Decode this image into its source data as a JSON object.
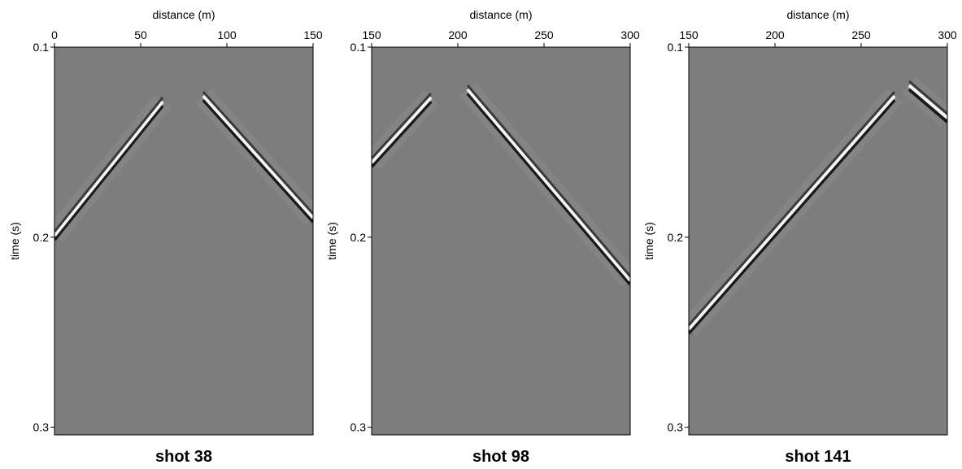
{
  "chart_data": [
    {
      "type": "seismic",
      "title": "shot 38",
      "xlabel": "distance (m)",
      "ylabel": "time (s)",
      "xlim": [
        0,
        150
      ],
      "xticks": [
        0,
        50,
        100,
        150
      ],
      "ylim": [
        0.1,
        0.304
      ],
      "yticks": [
        0.1,
        0.2,
        0.3
      ]
    },
    {
      "type": "seismic",
      "title": "shot 98",
      "xlabel": "distance (m)",
      "ylabel": "time (s)",
      "xlim": [
        150,
        300
      ],
      "xticks": [
        150,
        200,
        250,
        300
      ],
      "ylim": [
        0.1,
        0.304
      ],
      "yticks": [
        0.1,
        0.2,
        0.3
      ]
    },
    {
      "type": "seismic",
      "title": "shot 141",
      "xlabel": "distance (m)",
      "ylabel": "time (s)",
      "xlim": [
        150,
        300
      ],
      "xticks": [
        150,
        200,
        250,
        300
      ],
      "ylim": [
        0.1,
        0.304
      ],
      "yticks": [
        0.1,
        0.2,
        0.3
      ]
    }
  ]
}
